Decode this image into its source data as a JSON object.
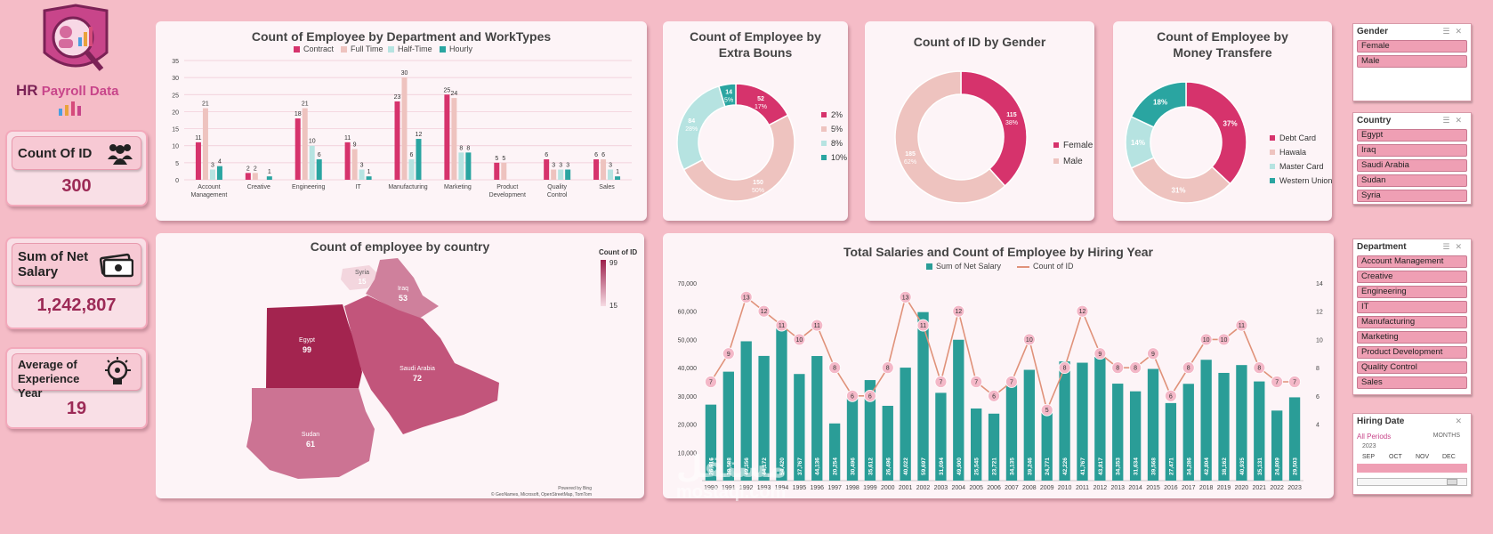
{
  "logo": {
    "line1": "HR",
    "line2": "Payroll Data"
  },
  "kpis": [
    {
      "label": "Count Of ID",
      "value": "300",
      "icon": "group-icon"
    },
    {
      "label": "Sum of Net Salary",
      "value": "1,242,807",
      "icon": "money-icon"
    },
    {
      "label": "Average of Experience Year",
      "value": "19",
      "icon": "lightbulb-gear-icon"
    }
  ],
  "colors": {
    "contract": "#d6336c",
    "fulltime": "#eec3bf",
    "halftime": "#b6e3e1",
    "hourly": "#2aa5a1",
    "bar": "#2a9d97",
    "line": "#e0927a",
    "accent": "#9c2a56"
  },
  "charts": {
    "dept": {
      "title": "Count of Employee by Department and WorkTypes",
      "legend": [
        "Contract",
        "Full Time",
        "Half-Time",
        "Hourly"
      ],
      "yticks": [
        "0",
        "5",
        "10",
        "15",
        "20",
        "25",
        "30",
        "35"
      ],
      "categories": [
        "Account Management",
        "Creative",
        "Engineering",
        "IT",
        "Manufacturing",
        "Marketing",
        "Product Development",
        "Quality Control",
        "Sales"
      ],
      "series": [
        {
          "name": "Contract",
          "values": [
            11,
            2,
            18,
            11,
            23,
            25,
            5,
            6,
            6
          ]
        },
        {
          "name": "Full Time",
          "values": [
            21,
            2,
            21,
            9,
            30,
            24,
            5,
            3,
            6
          ]
        },
        {
          "name": "Half-Time",
          "values": [
            3,
            0,
            10,
            3,
            6,
            8,
            0,
            3,
            3
          ]
        },
        {
          "name": "Hourly",
          "values": [
            4,
            1,
            6,
            1,
            12,
            8,
            0,
            3,
            1
          ]
        }
      ]
    },
    "bonus": {
      "title": "Count of Employee by Extra Bouns",
      "legend": [
        "2%",
        "5%",
        "8%",
        "10%"
      ],
      "values": [
        52,
        150,
        84,
        14
      ],
      "labels": [
        [
          "52",
          "17%"
        ],
        [
          "150",
          "50%"
        ],
        [
          "84",
          "28%"
        ],
        [
          "14",
          "5%"
        ]
      ]
    },
    "gender": {
      "title": "Count of ID by Gender",
      "legend": [
        "Female",
        "Male"
      ],
      "values": [
        115,
        185
      ],
      "labels": [
        [
          "115",
          "38%"
        ],
        [
          "185",
          "62%"
        ]
      ]
    },
    "money": {
      "title": "Count of Employee by Money Transfere",
      "legend": [
        "Debt Card",
        "Hawala",
        "Master Card",
        "Western Union"
      ],
      "values": [
        37,
        31,
        14,
        18
      ],
      "labels": [
        "37%",
        "31%",
        "14%",
        "18%"
      ]
    },
    "country": {
      "title": "Count of employee by country",
      "legend_title": "Count of ID",
      "legend_max": "99",
      "legend_min": "15",
      "regions": [
        {
          "name": "Syria",
          "value": "15"
        },
        {
          "name": "Iraq",
          "value": "53"
        },
        {
          "name": "Egypt",
          "value": "99"
        },
        {
          "name": "Saudi Arabia",
          "value": "72"
        },
        {
          "name": "Sudan",
          "value": "61"
        }
      ],
      "credit1": "Powered by Bing",
      "credit2": "© GeoNames, Microsoft, OpenStreetMap, TomTom"
    },
    "hiring": {
      "title": "Total Salaries and Count of Employee by Hiring Year",
      "legend": [
        "Sum of Net Salary",
        "Count of ID"
      ],
      "yticks_left": [
        "10,000",
        "20,000",
        "30,000",
        "40,000",
        "50,000",
        "60,000",
        "70,000"
      ],
      "yticks_right": [
        "4",
        "6",
        "8",
        "10",
        "12",
        "14"
      ],
      "years": [
        "1990",
        "1991",
        "1992",
        "1993",
        "1994",
        "1995",
        "1996",
        "1997",
        "1998",
        "1999",
        "2000",
        "2001",
        "2002",
        "2003",
        "2004",
        "2005",
        "2006",
        "2007",
        "2008",
        "2009",
        "2010",
        "2011",
        "2012",
        "2013",
        "2014",
        "2015",
        "2016",
        "2017",
        "2018",
        "2019",
        "2020",
        "2021",
        "2022",
        "2023"
      ],
      "salary": [
        26916,
        38588,
        49356,
        44172,
        54420,
        37767,
        44136,
        20254,
        30496,
        35612,
        26496,
        40022,
        59697,
        31094,
        49900,
        25545,
        23721,
        34135,
        39246,
        24771,
        42226,
        41767,
        43817,
        34353,
        31634,
        39568,
        27471,
        34286,
        42804,
        38162,
        40935,
        35131,
        24809,
        29503
      ],
      "salary_labels": [
        "26,916",
        "38,588",
        "49,356",
        "44,172",
        "54,420",
        "37,767",
        "44,136",
        "20,254",
        "30,496",
        "35,612",
        "26,496",
        "40,022",
        "59,697",
        "31,094",
        "49,900",
        "25,545",
        "23,721",
        "34,135",
        "39,246",
        "24,771",
        "42,226",
        "41,767",
        "43,817",
        "34,353",
        "31,634",
        "39,568",
        "27,471",
        "34,286",
        "42,804",
        "38,162",
        "40,935",
        "35,131",
        "24,809",
        "29,503"
      ],
      "count": [
        7,
        9,
        13,
        12,
        11,
        10,
        11,
        8,
        6,
        6,
        8,
        13,
        11,
        7,
        12,
        7,
        6,
        7,
        10,
        5,
        8,
        12,
        9,
        8,
        8,
        9,
        6,
        8,
        10,
        10,
        11,
        8,
        7,
        7
      ]
    }
  },
  "slicers": {
    "gender": {
      "title": "Gender",
      "items": [
        "Female",
        "Male"
      ]
    },
    "country": {
      "title": "Country",
      "items": [
        "Egypt",
        "Iraq",
        "Saudi Arabia",
        "Sudan",
        "Syria"
      ]
    },
    "department": {
      "title": "Department",
      "items": [
        "Account Management",
        "Creative",
        "Engineering",
        "IT",
        "Manufacturing",
        "Marketing",
        "Product Development",
        "Quality Control",
        "Sales"
      ]
    },
    "hiring": {
      "title": "Hiring Date",
      "period": "All Periods",
      "unit": "MONTHS",
      "year": "2023",
      "months": [
        "SEP",
        "OCT",
        "NOV",
        "DEC"
      ]
    }
  },
  "watermark": {
    "line1": "مستقل",
    "line2": "mostaql.com"
  }
}
